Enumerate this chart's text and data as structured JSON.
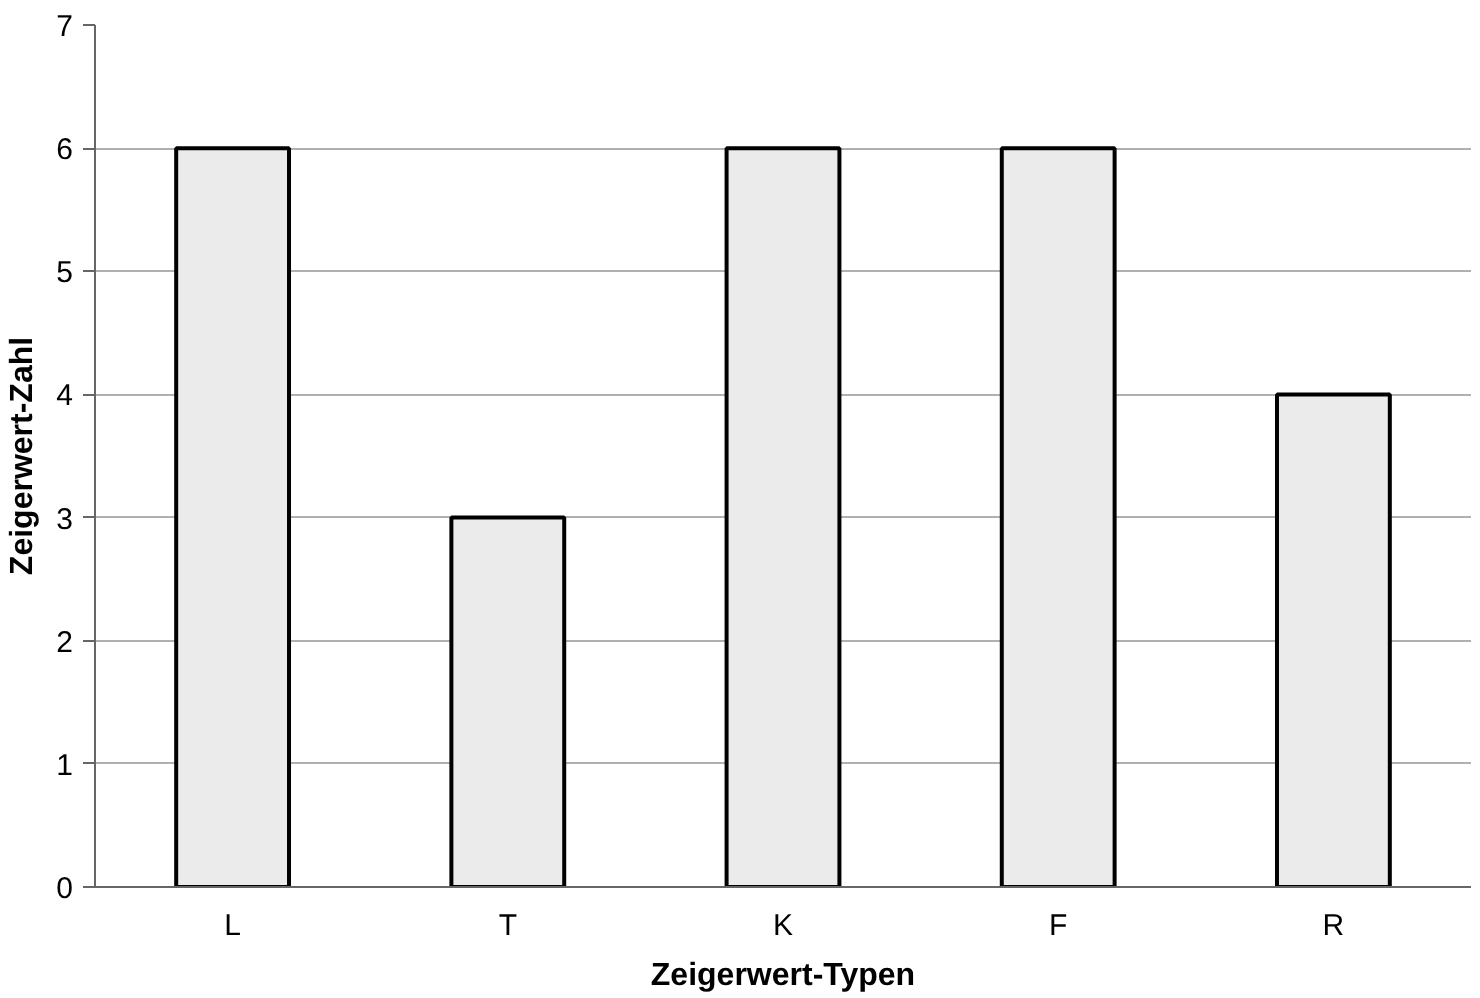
{
  "chart_data": {
    "type": "bar",
    "xlabel": "Zeigerwert-Typen",
    "ylabel": "Zeigerwert-Zahl",
    "categories": [
      "L",
      "T",
      "K",
      "F",
      "R"
    ],
    "values": [
      6,
      3,
      6,
      6,
      4
    ],
    "color": "#ebebeb",
    "ylim": [
      0,
      7
    ],
    "yticks": [
      0,
      1,
      2,
      3,
      4,
      5,
      6,
      7
    ],
    "grid": "y"
  }
}
